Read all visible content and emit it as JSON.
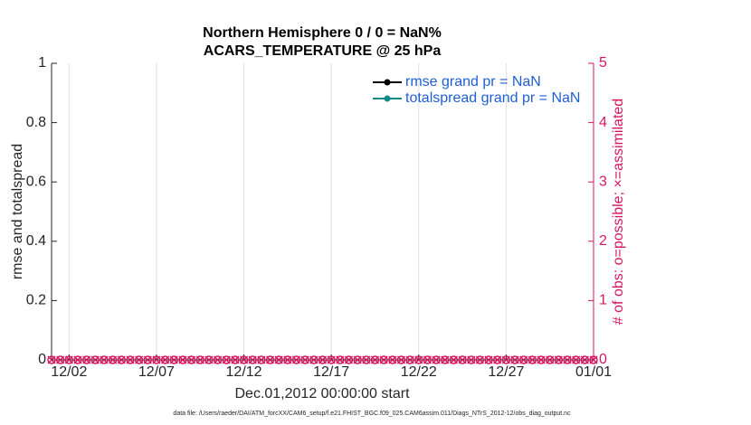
{
  "chart_data": {
    "type": "line",
    "title": "Northern Hemisphere 0 / 0 = NaN%",
    "subtitle": "ACARS_TEMPERATURE @ 25 hPa",
    "x_label": "Dec.01,2012 00:00:00 start",
    "y_label": "rmse and totalspread",
    "y2_label": "# of obs: o=possible; ×=assimilated",
    "footnote": "data file: /Users/raeder/DAI/ATM_forcXX/CAM6_setup/f.e21.FHIST_BGC.f09_025.CAM6assim.011/Diags_NTrS_2012-12/obs_diag_output.nc",
    "x": [
      0,
      0.5,
      1,
      1.5,
      2,
      2.5,
      3,
      3.5,
      4,
      4.5,
      5,
      5.5,
      6,
      6.5,
      7,
      7.5,
      8,
      8.5,
      9,
      9.5,
      10,
      10.5,
      11,
      11.5,
      12,
      12.5,
      13,
      13.5,
      14,
      14.5,
      15,
      15.5,
      16,
      16.5,
      17,
      17.5,
      18,
      18.5,
      19,
      19.5,
      20,
      20.5,
      21,
      21.5,
      22,
      22.5,
      23,
      23.5,
      24,
      24.5,
      25,
      25.5,
      26,
      26.5,
      27,
      27.5,
      28,
      28.5,
      29,
      29.5,
      30,
      30.5,
      31
    ],
    "series": [
      {
        "name": "rmse grand pr = NaN",
        "color": "#000000",
        "values": [
          null,
          null,
          null,
          null,
          null,
          null,
          null,
          null,
          null,
          null,
          null,
          null,
          null,
          null,
          null,
          null,
          null,
          null,
          null,
          null,
          null,
          null,
          null,
          null,
          null,
          null,
          null,
          null,
          null,
          null,
          null,
          null,
          null,
          null,
          null,
          null,
          null,
          null,
          null,
          null,
          null,
          null,
          null,
          null,
          null,
          null,
          null,
          null,
          null,
          null,
          null,
          null,
          null,
          null,
          null,
          null,
          null,
          null,
          null,
          null,
          null,
          null,
          null
        ]
      },
      {
        "name": "totalspread grand pr = NaN",
        "color": "#128a8a",
        "values": [
          null,
          null,
          null,
          null,
          null,
          null,
          null,
          null,
          null,
          null,
          null,
          null,
          null,
          null,
          null,
          null,
          null,
          null,
          null,
          null,
          null,
          null,
          null,
          null,
          null,
          null,
          null,
          null,
          null,
          null,
          null,
          null,
          null,
          null,
          null,
          null,
          null,
          null,
          null,
          null,
          null,
          null,
          null,
          null,
          null,
          null,
          null,
          null,
          null,
          null,
          null,
          null,
          null,
          null,
          null,
          null,
          null,
          null,
          null,
          null,
          null,
          null,
          null
        ]
      },
      {
        "marker": "o",
        "axis": "y2",
        "color": "#d6175f",
        "values": [
          0,
          0,
          0,
          0,
          0,
          0,
          0,
          0,
          0,
          0,
          0,
          0,
          0,
          0,
          0,
          0,
          0,
          0,
          0,
          0,
          0,
          0,
          0,
          0,
          0,
          0,
          0,
          0,
          0,
          0,
          0,
          0,
          0,
          0,
          0,
          0,
          0,
          0,
          0,
          0,
          0,
          0,
          0,
          0,
          0,
          0,
          0,
          0,
          0,
          0,
          0,
          0,
          0,
          0,
          0,
          0,
          0,
          0,
          0,
          0,
          0,
          0,
          0
        ]
      },
      {
        "marker": "x",
        "axis": "y2",
        "color": "#d6175f",
        "values": [
          0,
          0,
          0,
          0,
          0,
          0,
          0,
          0,
          0,
          0,
          0,
          0,
          0,
          0,
          0,
          0,
          0,
          0,
          0,
          0,
          0,
          0,
          0,
          0,
          0,
          0,
          0,
          0,
          0,
          0,
          0,
          0,
          0,
          0,
          0,
          0,
          0,
          0,
          0,
          0,
          0,
          0,
          0,
          0,
          0,
          0,
          0,
          0,
          0,
          0,
          0,
          0,
          0,
          0,
          0,
          0,
          0,
          0,
          0,
          0,
          0,
          0,
          0
        ]
      }
    ],
    "xlim": [
      0,
      31
    ],
    "xticks": [
      {
        "value": 1,
        "label": "12/02"
      },
      {
        "value": 6,
        "label": "12/07"
      },
      {
        "value": 11,
        "label": "12/12"
      },
      {
        "value": 16,
        "label": "12/17"
      },
      {
        "value": 21,
        "label": "12/22"
      },
      {
        "value": 26,
        "label": "12/27"
      },
      {
        "value": 31,
        "label": "01/01"
      }
    ],
    "ylim": [
      0,
      1
    ],
    "yticks": [
      0,
      0.2,
      0.4,
      0.6,
      0.8,
      1
    ],
    "y2lim": [
      0,
      5
    ],
    "y2ticks": [
      0,
      1,
      2,
      3,
      4,
      5
    ],
    "y2_color": "#d6175f",
    "grid": "x",
    "legend": "upper right"
  }
}
